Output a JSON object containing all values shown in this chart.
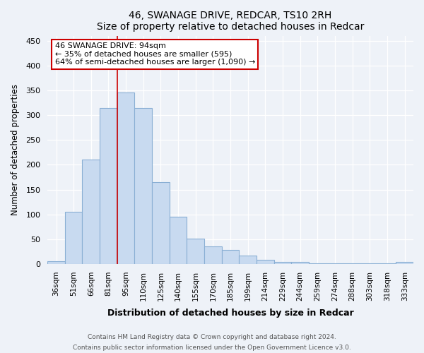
{
  "title": "46, SWANAGE DRIVE, REDCAR, TS10 2RH",
  "subtitle": "Size of property relative to detached houses in Redcar",
  "xlabel": "Distribution of detached houses by size in Redcar",
  "ylabel": "Number of detached properties",
  "categories": [
    "36sqm",
    "51sqm",
    "66sqm",
    "81sqm",
    "95sqm",
    "110sqm",
    "125sqm",
    "140sqm",
    "155sqm",
    "170sqm",
    "185sqm",
    "199sqm",
    "214sqm",
    "229sqm",
    "244sqm",
    "259sqm",
    "274sqm",
    "288sqm",
    "303sqm",
    "318sqm",
    "333sqm"
  ],
  "values": [
    6,
    105,
    210,
    315,
    345,
    315,
    165,
    96,
    51,
    35,
    29,
    17,
    9,
    4,
    5,
    2,
    2,
    2,
    2,
    2,
    4
  ],
  "bar_color": "#c8daf0",
  "bar_edge_color": "#8aafd4",
  "vline_x": 3.5,
  "vline_color": "#cc0000",
  "annotation_line1": "46 SWANAGE DRIVE: 94sqm",
  "annotation_line2": "← 35% of detached houses are smaller (595)",
  "annotation_line3": "64% of semi-detached houses are larger (1,090) →",
  "annotation_box_color": "#ffffff",
  "annotation_box_edge": "#cc0000",
  "ylim": [
    0,
    460
  ],
  "yticks": [
    0,
    50,
    100,
    150,
    200,
    250,
    300,
    350,
    400,
    450
  ],
  "footnote1": "Contains HM Land Registry data © Crown copyright and database right 2024.",
  "footnote2": "Contains public sector information licensed under the Open Government Licence v3.0.",
  "background_color": "#eef2f8"
}
